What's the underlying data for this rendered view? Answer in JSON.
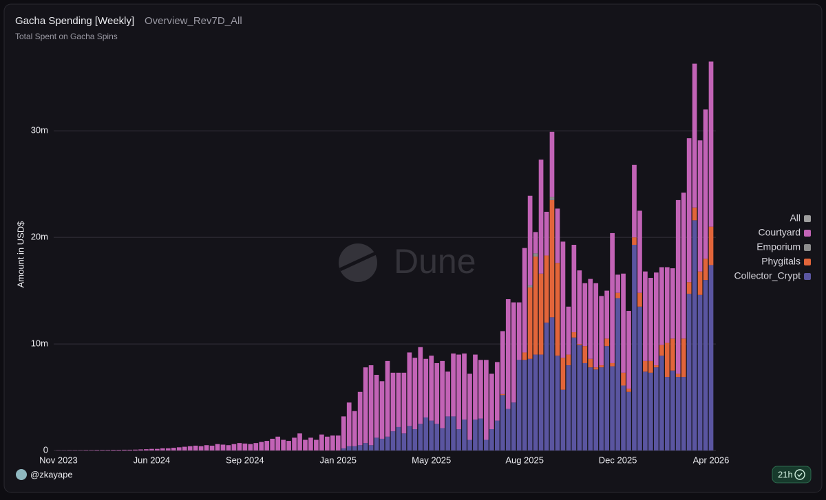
{
  "chart_data": {
    "type": "stacked_bar",
    "title": "Gacha Spending [Weekly]",
    "query_name": "Overview_Rev7D_All",
    "subtitle": "Total Spent on Gacha Spins",
    "ylabel": "Amount in USD$",
    "watermark": "Dune",
    "ylim": [
      0,
      37.5
    ],
    "yticks": [
      0,
      {
        "value": 10,
        "label": "10m"
      },
      {
        "value": 20,
        "label": "20m"
      },
      {
        "value": 30,
        "label": "30m"
      }
    ],
    "grid": true,
    "legend": "right",
    "categories": [
      "Nov 2023",
      null,
      null,
      null,
      null,
      null,
      null,
      null,
      null,
      null,
      null,
      null,
      null,
      null,
      null,
      null,
      null,
      "Jun 2024",
      null,
      null,
      null,
      null,
      null,
      null,
      null,
      null,
      null,
      null,
      null,
      null,
      null,
      null,
      null,
      null,
      "Sep 2024",
      null,
      null,
      null,
      null,
      null,
      null,
      null,
      null,
      null,
      null,
      null,
      null,
      null,
      null,
      null,
      null,
      "Jan 2025",
      null,
      null,
      null,
      null,
      null,
      null,
      null,
      null,
      null,
      null,
      null,
      null,
      null,
      null,
      null,
      null,
      "May 2025",
      null,
      null,
      null,
      null,
      null,
      null,
      null,
      null,
      null,
      null,
      null,
      null,
      null,
      null,
      null,
      null,
      "Aug 2025",
      null,
      null,
      null,
      null,
      null,
      null,
      null,
      null,
      null,
      null,
      null,
      null,
      null,
      null,
      null,
      null,
      "Dec 2025",
      null,
      null,
      null,
      null,
      null,
      null,
      null,
      null,
      null,
      null,
      null,
      null,
      null,
      null,
      null,
      null,
      "Apr 2026"
    ],
    "series": [
      {
        "name": "All",
        "color": "#9e9e9e",
        "values": [
          null,
          null,
          null,
          null,
          null,
          null,
          null,
          null,
          null,
          null,
          null,
          null,
          null,
          null,
          null,
          null,
          null,
          null,
          null,
          null,
          null,
          null,
          null,
          null,
          null,
          null,
          null,
          null,
          null,
          null,
          null,
          null,
          null,
          null,
          null,
          null,
          null,
          null,
          null,
          null,
          null,
          null,
          null,
          null,
          null,
          null,
          null,
          null,
          null,
          null,
          null,
          null,
          null,
          null,
          null,
          null,
          null,
          null,
          null,
          null,
          null,
          null,
          null,
          null,
          null,
          null,
          null,
          null,
          null,
          null,
          null,
          null,
          null,
          null,
          null,
          null,
          null,
          null,
          null,
          null,
          null,
          null,
          null,
          null,
          null,
          null,
          null,
          null,
          null,
          null,
          null,
          null,
          null,
          null,
          null,
          null,
          null,
          null,
          null,
          null,
          null,
          null,
          null,
          null,
          null,
          null,
          null,
          null,
          null,
          null,
          null,
          null,
          null,
          null,
          null,
          null,
          null,
          null,
          null,
          null
        ]
      },
      {
        "name": "Courtyard",
        "color": "#c263b6",
        "values": [
          0.02,
          0.02,
          0.03,
          0.03,
          0.03,
          0.04,
          0.04,
          0.05,
          0.05,
          0.05,
          0.06,
          0.06,
          0.07,
          0.07,
          0.08,
          0.1,
          0.12,
          0.15,
          0.15,
          0.2,
          0.2,
          0.25,
          0.3,
          0.35,
          0.4,
          0.45,
          0.4,
          0.5,
          0.45,
          0.6,
          0.55,
          0.5,
          0.6,
          0.7,
          0.65,
          0.6,
          0.7,
          0.8,
          0.9,
          1.1,
          1.3,
          1.0,
          0.9,
          1.2,
          1.6,
          1.0,
          1.2,
          1.0,
          1.5,
          1.3,
          1.4,
          1.4,
          3.0,
          4.1,
          3.3,
          5.0,
          7.1,
          7.5,
          5.9,
          5.4,
          7.1,
          5.5,
          5.1,
          5.7,
          6.9,
          6.7,
          7.2,
          5.5,
          6.1,
          5.7,
          6.3,
          4.2,
          5.9,
          7.0,
          6.2,
          6.2,
          6.1,
          5.5,
          7.5,
          5.2,
          5.5,
          5.9,
          10.3,
          9.4,
          5.4,
          9.8,
          8.4,
          2.0,
          10.7,
          4.1,
          6.1,
          5.1,
          10.9,
          4.5,
          8.2,
          6.9,
          5.9,
          7.5,
          7.9,
          6.5,
          4.5,
          12.2,
          1.7,
          9.3,
          7.3,
          6.8,
          7.7,
          8.4,
          7.8,
          8.7,
          7.3,
          7.1,
          6.6,
          16.3,
          13.7,
          13.5,
          13.5,
          12.3,
          14.0,
          15.5
        ]
      },
      {
        "name": "Emporium",
        "color": "#8c8c8c",
        "values": [
          0,
          0,
          0,
          0,
          0,
          0,
          0,
          0,
          0,
          0,
          0,
          0,
          0,
          0,
          0,
          0,
          0,
          0,
          0,
          0,
          0,
          0,
          0,
          0,
          0,
          0,
          0,
          0,
          0,
          0,
          0,
          0,
          0,
          0,
          0,
          0,
          0,
          0,
          0,
          0,
          0,
          0,
          0,
          0,
          0,
          0,
          0,
          0,
          0,
          0,
          0,
          0,
          0,
          0,
          0,
          0,
          0,
          0,
          0,
          0,
          0,
          0,
          0,
          0,
          0,
          0,
          0,
          0,
          0,
          0,
          0,
          0,
          0,
          0,
          0,
          0,
          0,
          0,
          0,
          0,
          0,
          0,
          0,
          0,
          0,
          0,
          0.2,
          0.3,
          0,
          0,
          0.3,
          0,
          0,
          0,
          0,
          0,
          0,
          0,
          0,
          0,
          0,
          0,
          0,
          0,
          0,
          0,
          0,
          0,
          0,
          0,
          0,
          0,
          0,
          0,
          0,
          0,
          0,
          0,
          0,
          0
        ]
      },
      {
        "name": "Phygitals",
        "color": "#e2653a",
        "values": [
          0,
          0,
          0,
          0,
          0,
          0,
          0,
          0,
          0,
          0,
          0,
          0,
          0,
          0,
          0,
          0,
          0,
          0,
          0,
          0,
          0,
          0,
          0,
          0,
          0,
          0,
          0,
          0,
          0,
          0,
          0,
          0,
          0,
          0,
          0,
          0,
          0,
          0,
          0,
          0,
          0,
          0,
          0,
          0,
          0,
          0,
          0,
          0,
          0,
          0,
          0,
          0,
          0,
          0,
          0,
          0,
          0,
          0,
          0,
          0,
          0,
          0,
          0,
          0,
          0,
          0,
          0,
          0,
          0,
          0,
          0,
          0,
          0,
          0,
          0,
          0,
          0,
          0,
          0,
          0,
          0,
          0.1,
          0,
          0,
          0,
          0.7,
          6.7,
          9.2,
          7.6,
          6.3,
          11.0,
          8.7,
          3.0,
          1.0,
          0.5,
          0.1,
          1.6,
          0.8,
          0.2,
          0.2,
          0.7,
          0.3,
          0.5,
          1.2,
          0.3,
          0.7,
          1.3,
          1.0,
          1.1,
          0.2,
          1.0,
          3.2,
          3.0,
          0.3,
          3.6,
          1.1,
          1.2,
          2.2,
          2.0,
          3.6
        ]
      },
      {
        "name": "Collector_Crypt",
        "color": "#5a55a0",
        "values": [
          0,
          0,
          0,
          0,
          0,
          0,
          0,
          0,
          0,
          0,
          0,
          0,
          0,
          0,
          0,
          0,
          0,
          0,
          0,
          0,
          0,
          0,
          0,
          0,
          0,
          0,
          0,
          0,
          0,
          0,
          0,
          0,
          0,
          0,
          0,
          0,
          0,
          0,
          0,
          0,
          0,
          0,
          0,
          0,
          0,
          0,
          0,
          0,
          0,
          0,
          0,
          0,
          0.2,
          0.4,
          0.4,
          0.5,
          0.7,
          0.5,
          1.2,
          1.1,
          1.3,
          1.8,
          2.2,
          1.6,
          2.3,
          2.0,
          2.5,
          3.1,
          2.8,
          2.5,
          2.1,
          3.2,
          3.2,
          2.0,
          2.9,
          1.0,
          2.9,
          3.0,
          1.0,
          2.0,
          2.8,
          5.2,
          3.9,
          4.5,
          8.5,
          8.5,
          8.6,
          9.0,
          9.0,
          12.0,
          12.5,
          8.9,
          5.7,
          8.0,
          10.6,
          9.9,
          8.2,
          7.8,
          7.6,
          7.8,
          9.8,
          7.9,
          14.3,
          6.1,
          5.5,
          19.3,
          13.5,
          7.4,
          7.3,
          7.8,
          8.9,
          6.9,
          7.5,
          6.9,
          6.9,
          14.7,
          21.6,
          14.6,
          16.0,
          17.4
        ]
      }
    ]
  },
  "author": "@zkayape",
  "refreshed": "21h"
}
